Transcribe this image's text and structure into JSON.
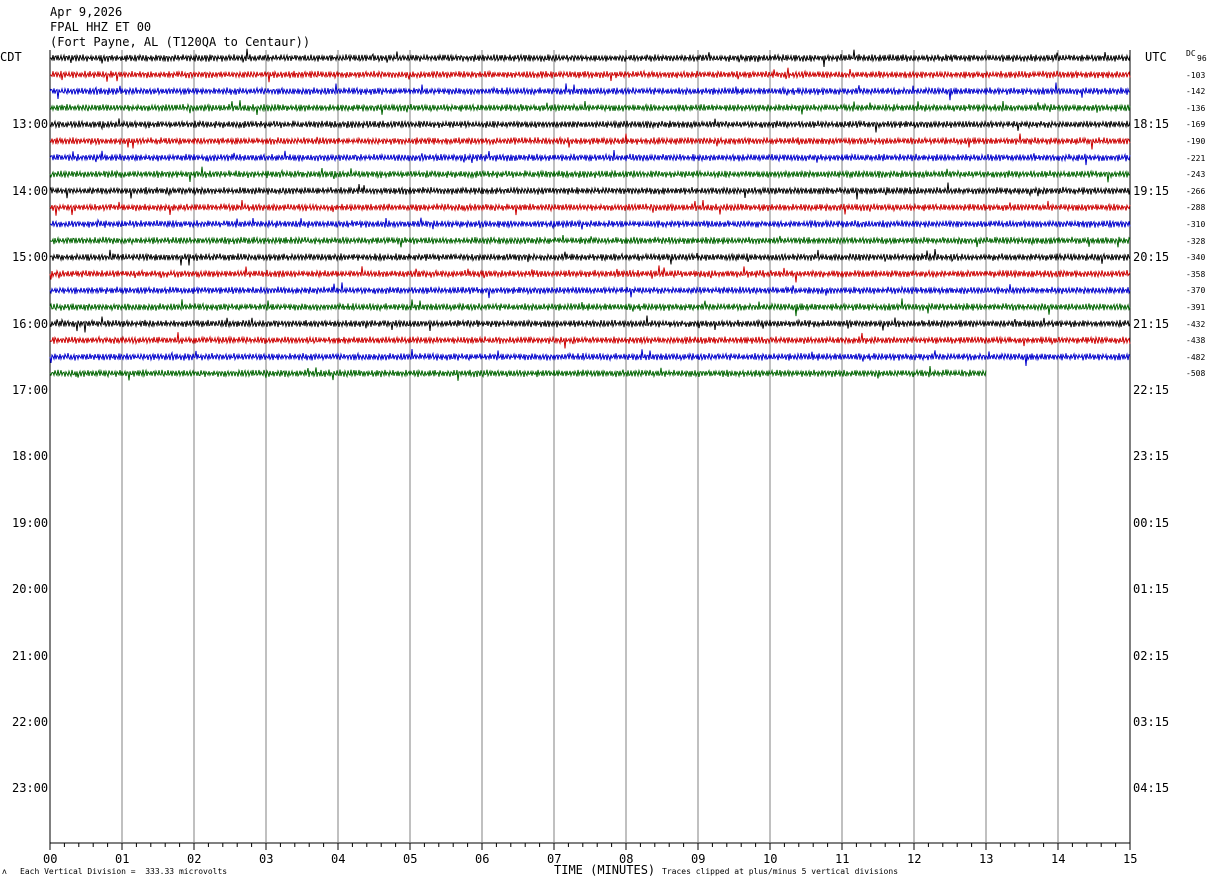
{
  "header": {
    "date": "Apr 9,2026",
    "station": "FPAL HHZ ET 00",
    "location": "(Fort Payne, AL (T120QA to Centaur))"
  },
  "left_zone_label": "CDT",
  "right_zone_label": "UTC",
  "dc_label": "DC",
  "footer": {
    "vertical_division": "Each Vertical Division =  333.33 microvolts",
    "xlabel": "TIME (MINUTES)",
    "clip_note": "Traces clipped at plus/minus 5 vertical divisions"
  },
  "chart_data": {
    "type": "line",
    "title": "FPAL HHZ ET 00",
    "xlabel": "TIME (MINUTES)",
    "ylabel": "",
    "xlim": [
      0,
      15
    ],
    "x_ticks": [
      "00",
      "01",
      "02",
      "03",
      "04",
      "05",
      "06",
      "07",
      "08",
      "09",
      "10",
      "11",
      "12",
      "13",
      "14",
      "15"
    ],
    "grid": true,
    "cdt_hour_labels": [
      "13:00",
      "14:00",
      "15:00",
      "16:00",
      "17:00",
      "18:00",
      "19:00",
      "20:00",
      "21:00",
      "22:00",
      "23:00"
    ],
    "utc_hour_labels": [
      "18:15",
      "19:15",
      "20:15",
      "21:15",
      "22:15",
      "23:15",
      "00:15",
      "01:15",
      "02:15",
      "03:15",
      "04:15"
    ],
    "trace_colors": [
      "#000000",
      "#cc0000",
      "#0000cc",
      "#006400"
    ],
    "dc_offsets": [
      "96",
      "-103",
      "-142",
      "-136",
      "-169",
      "-190",
      "-221",
      "-243",
      "-266",
      "-288",
      "-310",
      "-328",
      "-340",
      "-358",
      "-370",
      "-391",
      "-432",
      "-438",
      "-482",
      "-508"
    ],
    "trace_count": 20,
    "last_trace_end_minute": 13
  }
}
